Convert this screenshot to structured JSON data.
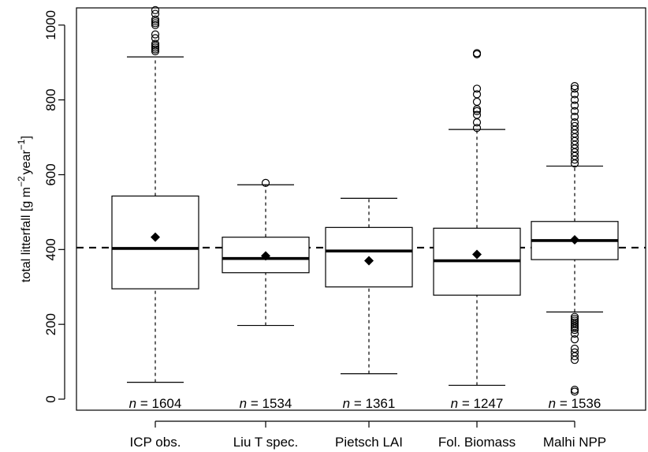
{
  "chart_data": {
    "type": "boxplot",
    "ylabel": {
      "main": "total litterfall [g m",
      "exp1": "−2",
      "mid": "year",
      "exp2": "−1",
      "end": "]"
    },
    "ylim": [
      0,
      1040
    ],
    "yticks": [
      0,
      200,
      400,
      600,
      800,
      1000
    ],
    "reference_line": 405,
    "n_prefix": "n",
    "boxes": [
      {
        "category": "ICP obs.",
        "n_label": "= 1604",
        "whisker_low": 45,
        "q1": 295,
        "median": 403,
        "q3": 543,
        "whisker_high": 915,
        "mean": 433,
        "outliers": [
          930,
          935,
          940,
          945,
          950,
          965,
          975,
          1000,
          1005,
          1010,
          1015,
          1030,
          1040
        ]
      },
      {
        "category": "Liu T spec.",
        "n_label": "= 1534",
        "whisker_low": 197,
        "q1": 338,
        "median": 376,
        "q3": 433,
        "whisker_high": 573,
        "mean": 383,
        "outliers": [
          578
        ]
      },
      {
        "category": "Pietsch LAI",
        "n_label": "= 1361",
        "whisker_low": 68,
        "q1": 300,
        "median": 396,
        "q3": 459,
        "whisker_high": 537,
        "mean": 370,
        "outliers": []
      },
      {
        "category": "Fol. Biomass",
        "n_label": "= 1247",
        "whisker_low": 37,
        "q1": 278,
        "median": 370,
        "q3": 457,
        "whisker_high": 721,
        "mean": 387,
        "outliers": [
          725,
          740,
          760,
          770,
          775,
          795,
          815,
          830,
          922,
          925
        ]
      },
      {
        "category": "Malhi NPP",
        "n_label": "= 1536",
        "whisker_low": 233,
        "q1": 373,
        "median": 424,
        "q3": 475,
        "whisker_high": 623,
        "mean": 426,
        "outliers": [
          20,
          25,
          105,
          115,
          125,
          135,
          160,
          175,
          185,
          190,
          195,
          200,
          205,
          210,
          215,
          220,
          630,
          640,
          650,
          660,
          670,
          680,
          690,
          700,
          710,
          720,
          730,
          740,
          755,
          770,
          785,
          800,
          815,
          830,
          837
        ]
      }
    ]
  }
}
